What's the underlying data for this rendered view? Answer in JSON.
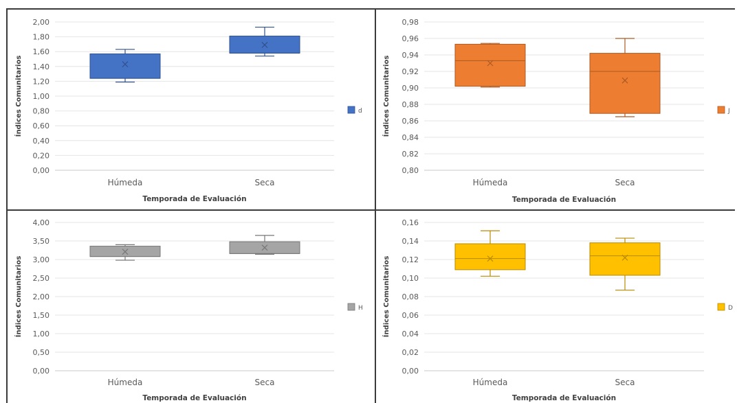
{
  "chart_data": [
    {
      "type": "box",
      "categories": [
        "Húmeda",
        "Seca"
      ],
      "xlabel": "Temporada de Evaluación",
      "ylabel": "Índices Comunitarios",
      "ylim": [
        0,
        2
      ],
      "yticks": [
        "0,00",
        "0,20",
        "0,40",
        "0,60",
        "0,80",
        "1,00",
        "1,20",
        "1,40",
        "1,60",
        "1,80",
        "2,00"
      ],
      "grid": true,
      "legend_position": "right",
      "series": [
        {
          "name": "d",
          "color": "#4472C4",
          "boxes": [
            {
              "min": 1.19,
              "q1": 1.24,
              "median": 1.24,
              "q3": 1.57,
              "max": 1.63,
              "mean": 1.43
            },
            {
              "min": 1.54,
              "q1": 1.58,
              "median": 1.58,
              "q3": 1.81,
              "max": 1.93,
              "mean": 1.69
            }
          ]
        }
      ]
    },
    {
      "type": "box",
      "categories": [
        "Húmeda",
        "Seca"
      ],
      "xlabel": "Temporada de Evaluación",
      "ylabel": "Índices Comunitarios",
      "ylim": [
        0.8,
        0.98
      ],
      "yticks": [
        "0,80",
        "0,82",
        "0,84",
        "0,86",
        "0,88",
        "0,90",
        "0,92",
        "0,94",
        "0,96",
        "0,98"
      ],
      "grid": true,
      "legend_position": "right",
      "series": [
        {
          "name": "J",
          "color": "#ED7D31",
          "boxes": [
            {
              "min": 0.901,
              "q1": 0.902,
              "median": 0.933,
              "q3": 0.953,
              "max": 0.954,
              "mean": 0.93
            },
            {
              "min": 0.865,
              "q1": 0.869,
              "median": 0.92,
              "q3": 0.942,
              "max": 0.96,
              "mean": 0.909
            }
          ]
        }
      ]
    },
    {
      "type": "box",
      "categories": [
        "Húmeda",
        "Seca"
      ],
      "xlabel": "Temporada de Evaluación",
      "ylabel": "Índices Comunitarios",
      "ylim": [
        0,
        4
      ],
      "yticks": [
        "0,00",
        "0,50",
        "1,00",
        "1,50",
        "2,00",
        "2,50",
        "3,00",
        "3,50",
        "4,00"
      ],
      "grid": true,
      "legend_position": "right",
      "series": [
        {
          "name": "H",
          "color": "#A5A5A5",
          "boxes": [
            {
              "min": 2.98,
              "q1": 3.08,
              "median": 3.08,
              "q3": 3.36,
              "max": 3.4,
              "mean": 3.21
            },
            {
              "min": 3.14,
              "q1": 3.16,
              "median": 3.16,
              "q3": 3.48,
              "max": 3.65,
              "mean": 3.32
            }
          ]
        }
      ]
    },
    {
      "type": "box",
      "categories": [
        "Húmeda",
        "Seca"
      ],
      "xlabel": "Temporada de Evaluación",
      "ylabel": "Índices Comunitarios",
      "ylim": [
        0,
        0.16
      ],
      "yticks": [
        "0,00",
        "0,02",
        "0,04",
        "0,06",
        "0,08",
        "0,10",
        "0,12",
        "0,14",
        "0,16"
      ],
      "grid": true,
      "legend_position": "right",
      "series": [
        {
          "name": "D",
          "color": "#FFC000",
          "boxes": [
            {
              "min": 0.102,
              "q1": 0.109,
              "median": 0.121,
              "q3": 0.137,
              "max": 0.151,
              "mean": 0.121
            },
            {
              "min": 0.087,
              "q1": 0.103,
              "median": 0.124,
              "q3": 0.138,
              "max": 0.143,
              "mean": 0.122
            }
          ]
        }
      ]
    }
  ]
}
